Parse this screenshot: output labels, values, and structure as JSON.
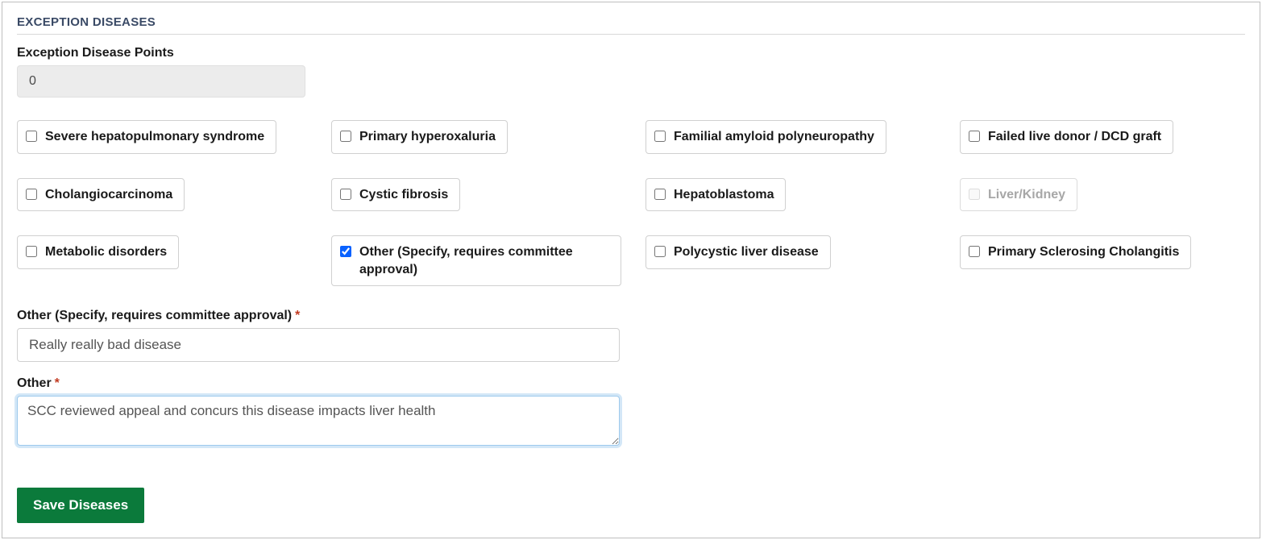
{
  "section": {
    "title": "EXCEPTION DISEASES"
  },
  "points": {
    "label": "Exception Disease Points",
    "value": "0"
  },
  "diseases": [
    {
      "id": "severe-hps",
      "label": "Severe hepatopulmonary syndrome",
      "checked": false,
      "disabled": false
    },
    {
      "id": "primary-hyperoxaluria",
      "label": "Primary hyperoxaluria",
      "checked": false,
      "disabled": false
    },
    {
      "id": "familial-amyloid",
      "label": "Familial amyloid polyneuropathy",
      "checked": false,
      "disabled": false
    },
    {
      "id": "failed-live-donor",
      "label": "Failed live donor / DCD graft",
      "checked": false,
      "disabled": false
    },
    {
      "id": "cholangiocarcinoma",
      "label": "Cholangiocarcinoma",
      "checked": false,
      "disabled": false
    },
    {
      "id": "cystic-fibrosis",
      "label": "Cystic fibrosis",
      "checked": false,
      "disabled": false
    },
    {
      "id": "hepatoblastoma",
      "label": "Hepatoblastoma",
      "checked": false,
      "disabled": false
    },
    {
      "id": "liver-kidney",
      "label": "Liver/Kidney",
      "checked": false,
      "disabled": true
    },
    {
      "id": "metabolic-disorders",
      "label": "Metabolic disorders",
      "checked": false,
      "disabled": false
    },
    {
      "id": "other",
      "label": "Other (Specify, requires committee approval)",
      "checked": true,
      "disabled": false
    },
    {
      "id": "polycystic",
      "label": "Polycystic liver disease",
      "checked": false,
      "disabled": false
    },
    {
      "id": "psc",
      "label": "Primary Sclerosing Cholangitis",
      "checked": false,
      "disabled": false
    }
  ],
  "otherSpecify": {
    "label": "Other (Specify, requires committee approval)",
    "required": true,
    "value": "Really really bad disease"
  },
  "otherNote": {
    "label": "Other",
    "required": true,
    "value": "SCC reviewed appeal and concurs this disease impacts liver health"
  },
  "buttons": {
    "save": "Save Diseases"
  },
  "colors": {
    "panel_border": "#bfbfbf",
    "section_title": "#3a4a66",
    "divider": "#d9d9d9",
    "readonly_bg": "#ececec",
    "checkbox_border": "#d0d0d0",
    "checkbox_accent": "#0a62ff",
    "required_star": "#c23b22",
    "focus_ring": "#9ecaed",
    "save_bg": "#0b7a3b",
    "save_fg": "#ffffff"
  }
}
